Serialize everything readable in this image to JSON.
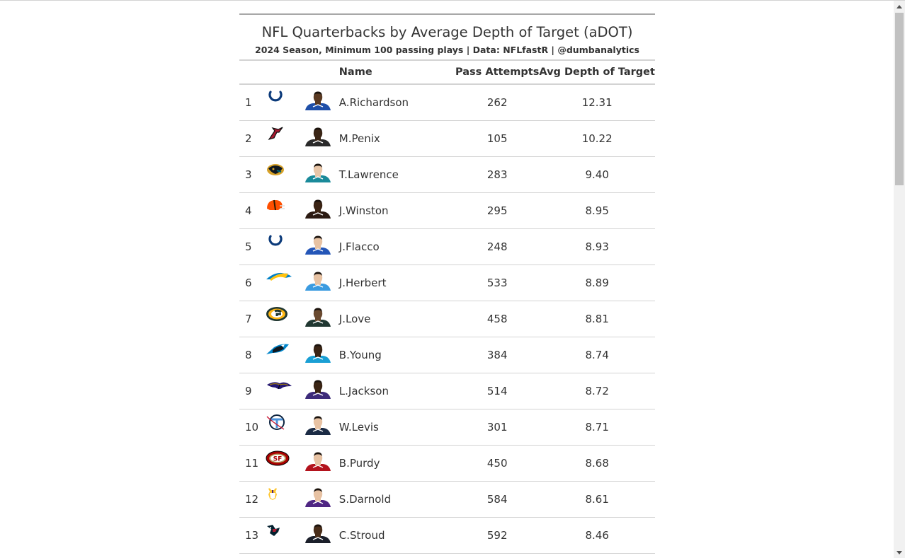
{
  "table": {
    "title": "NFL Quarterbacks by Average Depth of Target (aDOT)",
    "subtitle": "2024 Season, Minimum 100 passing plays | Data: NFLfastR | @dumbanalytics",
    "headers": {
      "rank": "",
      "team": "",
      "headshot": "",
      "name": "Name",
      "attempts": "Pass Attempts",
      "adot": "Avg Depth of Target"
    },
    "rows": [
      {
        "rank": "1",
        "team": "colts-logo",
        "name": "A.Richardson",
        "attempts": "262",
        "adot": "12.31",
        "jersey": "#1f4fa8",
        "skin": "#5a3a22"
      },
      {
        "rank": "2",
        "team": "falcons-logo",
        "name": "M.Penix",
        "attempts": "105",
        "adot": "10.22",
        "jersey": "#2a2a2a",
        "skin": "#3b2616"
      },
      {
        "rank": "3",
        "team": "jaguars-logo",
        "name": "T.Lawrence",
        "attempts": "283",
        "adot": "9.40",
        "jersey": "#1a8a9a",
        "skin": "#e8c6a8"
      },
      {
        "rank": "4",
        "team": "browns-logo",
        "name": "J.Winston",
        "attempts": "295",
        "adot": "8.95",
        "jersey": "#2b1a12",
        "skin": "#3b2414"
      },
      {
        "rank": "5",
        "team": "colts-logo",
        "name": "J.Flacco",
        "attempts": "248",
        "adot": "8.93",
        "jersey": "#2456b8",
        "skin": "#e7c2a3"
      },
      {
        "rank": "6",
        "team": "chargers-logo",
        "name": "J.Herbert",
        "attempts": "533",
        "adot": "8.89",
        "jersey": "#3b9be0",
        "skin": "#e7c2a3"
      },
      {
        "rank": "7",
        "team": "packers-logo",
        "name": "J.Love",
        "attempts": "458",
        "adot": "8.81",
        "jersey": "#203731",
        "skin": "#6a4a30"
      },
      {
        "rank": "8",
        "team": "panthers-logo",
        "name": "B.Young",
        "attempts": "384",
        "adot": "8.74",
        "jersey": "#1a9fd4",
        "skin": "#3a2414"
      },
      {
        "rank": "9",
        "team": "ravens-logo",
        "name": "L.Jackson",
        "attempts": "514",
        "adot": "8.72",
        "jersey": "#3d2b7a",
        "skin": "#3a2414"
      },
      {
        "rank": "10",
        "team": "titans-logo",
        "name": "W.Levis",
        "attempts": "301",
        "adot": "8.71",
        "jersey": "#1b2b45",
        "skin": "#e7c2a3"
      },
      {
        "rank": "11",
        "team": "49ers-logo",
        "name": "B.Purdy",
        "attempts": "450",
        "adot": "8.68",
        "jersey": "#b3131d",
        "skin": "#e7c2a3"
      },
      {
        "rank": "12",
        "team": "vikings-logo",
        "name": "S.Darnold",
        "attempts": "584",
        "adot": "8.61",
        "jersey": "#4f2683",
        "skin": "#e7c2a3"
      },
      {
        "rank": "13",
        "team": "texans-logo",
        "name": "C.Stroud",
        "attempts": "592",
        "adot": "8.46",
        "jersey": "#1b1f2a",
        "skin": "#4a2e1a"
      }
    ]
  },
  "colors": {
    "text": "#333333",
    "border": "#d3d3d3",
    "top_border": "#a8a8a8"
  }
}
